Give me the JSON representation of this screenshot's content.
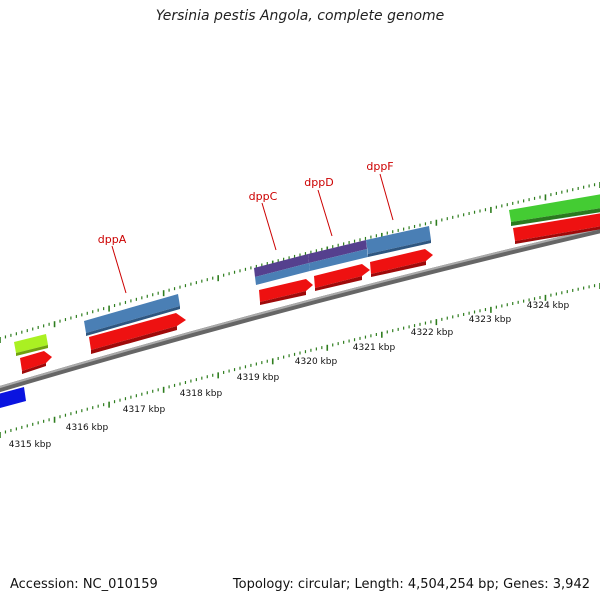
{
  "title": "Yersinia pestis Angola, complete genome",
  "footer": {
    "accession": "Accession: NC_010159",
    "summary": "Topology: circular; Length: 4,504,254 bp; Genes: 3,942"
  },
  "scale_labels": [
    "4315 kbp",
    "4316 kbp",
    "4317 kbp",
    "4318 kbp",
    "4319 kbp",
    "4320 kbp",
    "4321 kbp",
    "4322 kbp",
    "4323 kbp",
    "4324 kbp"
  ],
  "gene_labels": [
    "dppA",
    "dppC",
    "dppD",
    "dppF"
  ],
  "colors": {
    "backbone": "#8a8a8a",
    "tick": "#2e7d1e",
    "gene_label": "#cc0000",
    "cds_red": "#ee1111",
    "cds_blue": "#4a7fb5",
    "cds_purple": "#55408e",
    "green_feature": "#44cc33",
    "lime_feature": "#aaf022",
    "blue_feature": "#0a14e0"
  }
}
